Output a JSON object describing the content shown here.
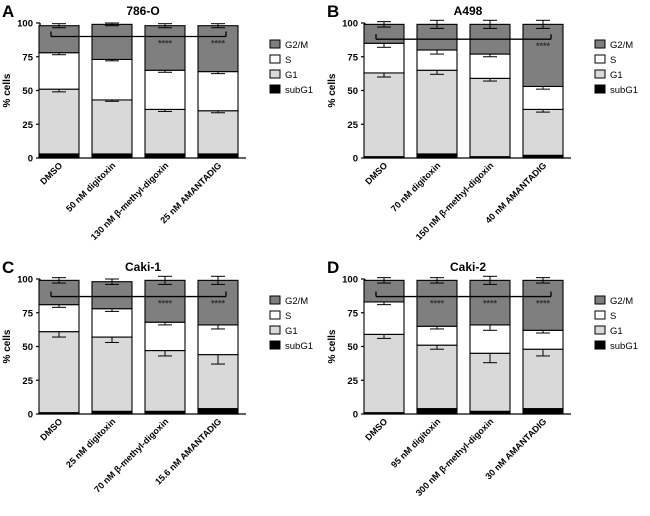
{
  "figure": {
    "stack_order": [
      "subG1",
      "G1",
      "S",
      "G2/M"
    ],
    "colors": {
      "subG1": "#000000",
      "G1": "#d9d9d9",
      "S": "#ffffff",
      "G2/M": "#7f7f7f",
      "stroke": "#000000"
    },
    "significance_label": "****"
  },
  "chart_data": [
    {
      "panel_letter": "A",
      "type": "bar",
      "stacked": true,
      "title": "786-O",
      "ylabel": "% cells",
      "xlabel": "",
      "ylim": [
        0,
        100
      ],
      "yticks": [
        "0",
        "25",
        "50",
        "75",
        "100"
      ],
      "categories": [
        "DMSO",
        "50 nM digitoxin",
        "130 nM β-methyl-digoxin",
        "25 nM AMANTADIG"
      ],
      "legend": [
        "G2/M",
        "S",
        "G1",
        "subG1"
      ],
      "legend_position": "right",
      "series": [
        {
          "name": "subG1",
          "values": [
            3,
            3,
            3,
            3
          ],
          "errors": [
            0.5,
            0.5,
            0.5,
            0.5
          ]
        },
        {
          "name": "G1",
          "values": [
            48,
            40,
            33,
            32
          ],
          "errors": [
            2,
            1,
            1.5,
            1.5
          ]
        },
        {
          "name": "S",
          "values": [
            27,
            30,
            29,
            29
          ],
          "errors": [
            1.5,
            1,
            1.5,
            1.5
          ]
        },
        {
          "name": "G2/M",
          "values": [
            20,
            26,
            33,
            34
          ],
          "errors": [
            1.5,
            1,
            1.5,
            1.5
          ]
        }
      ],
      "significance": {
        "bracket_y": 90,
        "marks": [
          "",
          "",
          "****",
          "****"
        ]
      }
    },
    {
      "panel_letter": "B",
      "type": "bar",
      "stacked": true,
      "title": "A498",
      "ylabel": "% cells",
      "xlabel": "",
      "ylim": [
        0,
        100
      ],
      "yticks": [
        "0",
        "25",
        "50",
        "75",
        "100"
      ],
      "categories": [
        "DMSO",
        "70 nM digitoxin",
        "150 nM β-methyl-digoxin",
        "40 nM AMANTADIG"
      ],
      "legend": [
        "G2/M",
        "S",
        "G1",
        "subG1"
      ],
      "legend_position": "right",
      "series": [
        {
          "name": "subG1",
          "values": [
            1,
            3,
            1,
            2
          ],
          "errors": [
            0.5,
            1,
            0.5,
            0.5
          ]
        },
        {
          "name": "G1",
          "values": [
            62,
            62,
            58,
            34
          ],
          "errors": [
            3,
            3,
            2,
            2
          ]
        },
        {
          "name": "S",
          "values": [
            22,
            15,
            18,
            17
          ],
          "errors": [
            3,
            3,
            2,
            2
          ]
        },
        {
          "name": "G2/M",
          "values": [
            14,
            19,
            22,
            46
          ],
          "errors": [
            2,
            3,
            3,
            3
          ]
        }
      ],
      "significance": {
        "bracket_y": 88,
        "marks": [
          "",
          "",
          "",
          "****"
        ]
      }
    },
    {
      "panel_letter": "C",
      "type": "bar",
      "stacked": true,
      "title": "Caki-1",
      "ylabel": "% cells",
      "xlabel": "",
      "ylim": [
        0,
        100
      ],
      "yticks": [
        "0",
        "25",
        "50",
        "75",
        "100"
      ],
      "categories": [
        "DMSO",
        "25 nM digitoxin",
        "70 nM β-methyl-digoxin",
        "15.6 nM AMANTADIG"
      ],
      "legend": [
        "G2/M",
        "S",
        "G1",
        "subG1"
      ],
      "legend_position": "right",
      "series": [
        {
          "name": "subG1",
          "values": [
            1,
            2,
            2,
            4
          ],
          "errors": [
            0.5,
            1,
            1,
            1.5
          ]
        },
        {
          "name": "G1",
          "values": [
            60,
            55,
            45,
            40
          ],
          "errors": [
            4,
            4,
            4,
            7
          ]
        },
        {
          "name": "S",
          "values": [
            20,
            21,
            21,
            22
          ],
          "errors": [
            2,
            2,
            2,
            3
          ]
        },
        {
          "name": "G2/M",
          "values": [
            18,
            20,
            31,
            33
          ],
          "errors": [
            2,
            2,
            3,
            3
          ]
        }
      ],
      "significance": {
        "bracket_y": 87,
        "marks": [
          "",
          "",
          "****",
          "****"
        ]
      }
    },
    {
      "panel_letter": "D",
      "type": "bar",
      "stacked": true,
      "title": "Caki-2",
      "ylabel": "% cells",
      "xlabel": "",
      "ylim": [
        0,
        100
      ],
      "yticks": [
        "0",
        "25",
        "50",
        "75",
        "100"
      ],
      "categories": [
        "DMSO",
        "95 nM digitoxin",
        "300 nM β-methyl-digoxin",
        "30 nM AMANTADIG"
      ],
      "legend": [
        "G2/M",
        "S",
        "G1",
        "subG1"
      ],
      "legend_position": "right",
      "series": [
        {
          "name": "subG1",
          "values": [
            1,
            4,
            2,
            4
          ],
          "errors": [
            0.5,
            1,
            1,
            1
          ]
        },
        {
          "name": "G1",
          "values": [
            58,
            47,
            43,
            44
          ],
          "errors": [
            3,
            3,
            7,
            5
          ]
        },
        {
          "name": "S",
          "values": [
            24,
            14,
            21,
            14
          ],
          "errors": [
            2,
            2,
            4,
            2
          ]
        },
        {
          "name": "G2/M",
          "values": [
            16,
            34,
            33,
            37
          ],
          "errors": [
            2,
            2,
            3,
            2
          ]
        }
      ],
      "significance": {
        "bracket_y": 87,
        "marks": [
          "",
          "****",
          "****",
          "****"
        ]
      }
    }
  ]
}
